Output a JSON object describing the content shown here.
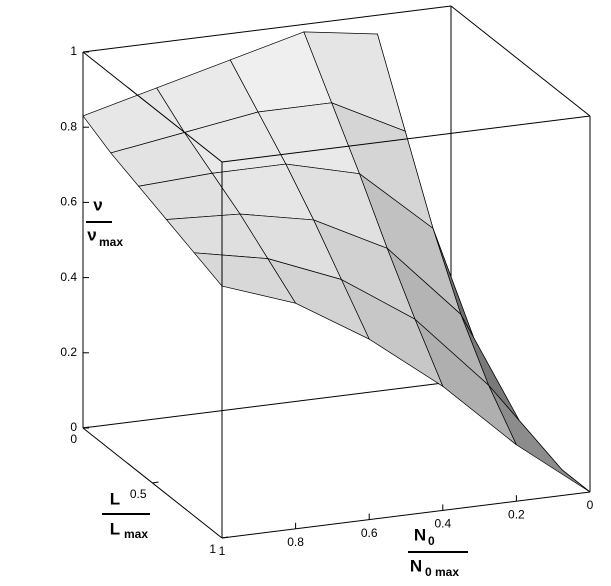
{
  "chart_data": {
    "type": "surface",
    "color": "#c8c8c8",
    "x": [
      0,
      0.2,
      0.4,
      0.6,
      0.8,
      1
    ],
    "y": [
      0,
      0.2,
      0.4,
      0.6,
      0.8,
      1
    ],
    "z": [
      [
        0,
        0.95,
        0.98,
        0.93,
        0.88,
        0.83
      ],
      [
        0,
        0.75,
        0.85,
        0.85,
        0.82,
        0.79
      ],
      [
        0,
        0.55,
        0.72,
        0.77,
        0.77,
        0.76
      ],
      [
        0,
        0.38,
        0.58,
        0.68,
        0.72,
        0.73
      ],
      [
        0,
        0.25,
        0.45,
        0.58,
        0.66,
        0.7
      ],
      [
        0,
        0.15,
        0.33,
        0.48,
        0.6,
        0.67
      ]
    ],
    "xlim": [
      0,
      1
    ],
    "ylim": [
      0,
      1
    ],
    "zlim": [
      0,
      1
    ],
    "xticks": [
      0,
      0.2,
      0.4,
      0.6,
      0.8,
      1
    ],
    "yticks": [
      0,
      0.5,
      1
    ],
    "zticks": [
      0,
      0.2,
      0.4,
      0.6,
      0.8,
      1
    ],
    "xlabel": {
      "numerator": "N",
      "numerator_sub": "0",
      "denominator": "N",
      "denominator_sub": "0 max"
    },
    "ylabel": {
      "numerator": "L",
      "denominator": "L",
      "denominator_sub": "max"
    },
    "zlabel": {
      "numerator": "ν",
      "denominator": "ν",
      "denominator_sub": "max"
    }
  }
}
